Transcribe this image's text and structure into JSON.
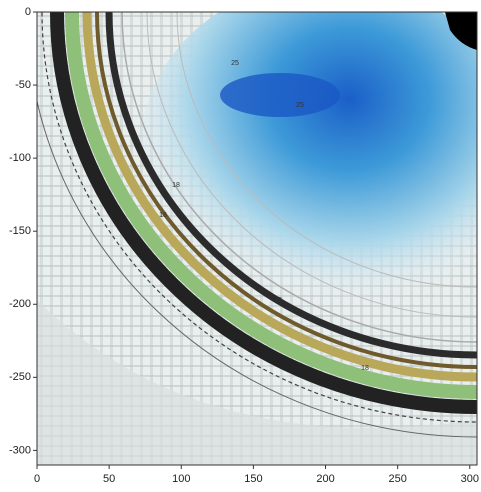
{
  "chart_data": {
    "type": "contour",
    "xlim": [
      0,
      305
    ],
    "ylim": [
      -310,
      0
    ],
    "xticks": [
      0,
      50,
      100,
      150,
      200,
      250,
      300
    ],
    "yticks": [
      0,
      -50,
      -100,
      -150,
      -200,
      -250,
      -300
    ],
    "annotations": [
      "25",
      "25",
      "18",
      "18",
      "18",
      "18"
    ]
  }
}
